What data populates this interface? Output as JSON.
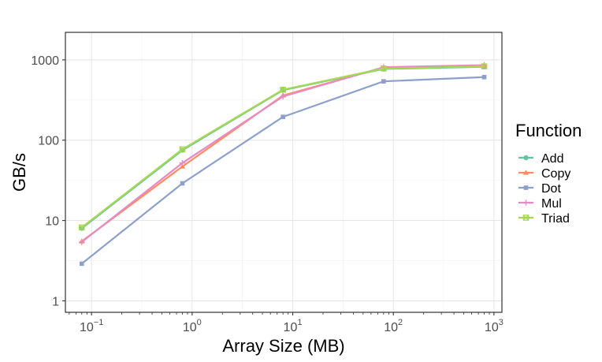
{
  "chart_data": {
    "type": "line",
    "title": "",
    "xlabel": "Array Size (MB)",
    "ylabel": "GB/s",
    "x_scale": "log",
    "y_scale": "log",
    "xlim": [
      0.055,
      1200
    ],
    "ylim": [
      0.72,
      2200
    ],
    "x_ticks": [
      {
        "value": 0.1,
        "base": "10",
        "exp": "−1"
      },
      {
        "value": 1,
        "base": "10",
        "exp": "0"
      },
      {
        "value": 10,
        "base": "10",
        "exp": "1"
      },
      {
        "value": 100,
        "base": "10",
        "exp": "2"
      },
      {
        "value": 1000,
        "base": "10",
        "exp": "3"
      }
    ],
    "y_ticks": [
      {
        "value": 1,
        "label": "1"
      },
      {
        "value": 10,
        "label": "10"
      },
      {
        "value": 100,
        "label": "100"
      },
      {
        "value": 1000,
        "label": "1000"
      }
    ],
    "grid": true,
    "legend": {
      "title": "Function",
      "position": "right"
    },
    "x": [
      0.08,
      0.8,
      8,
      80,
      800
    ],
    "series": [
      {
        "name": "Add",
        "color": "#66c2a5",
        "marker": "circle",
        "values": [
          8.0,
          75,
          420,
          770,
          820
        ]
      },
      {
        "name": "Copy",
        "color": "#fc8d62",
        "marker": "triangle",
        "values": [
          5.5,
          47,
          360,
          800,
          850
        ]
      },
      {
        "name": "Dot",
        "color": "#8da0cb",
        "marker": "square",
        "values": [
          2.9,
          29,
          195,
          540,
          610
        ]
      },
      {
        "name": "Mul",
        "color": "#e78ac3",
        "marker": "plus",
        "values": [
          5.4,
          52,
          350,
          810,
          860
        ]
      },
      {
        "name": "Triad",
        "color": "#a6d854",
        "marker": "boxtimes",
        "values": [
          8.2,
          77,
          425,
          780,
          830
        ]
      }
    ]
  }
}
